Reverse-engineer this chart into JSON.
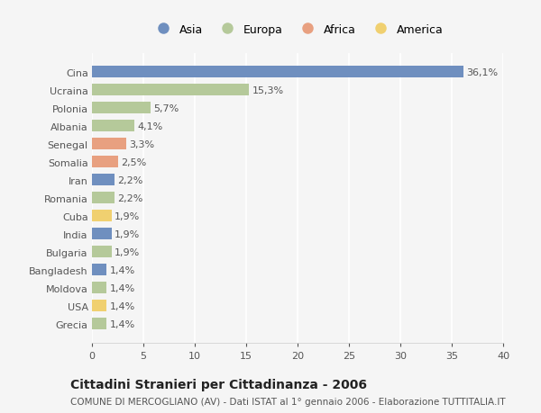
{
  "countries": [
    "Cina",
    "Ucraina",
    "Polonia",
    "Albania",
    "Senegal",
    "Somalia",
    "Iran",
    "Romania",
    "Cuba",
    "India",
    "Bulgaria",
    "Bangladesh",
    "Moldova",
    "USA",
    "Grecia"
  ],
  "values": [
    36.1,
    15.3,
    5.7,
    4.1,
    3.3,
    2.5,
    2.2,
    2.2,
    1.9,
    1.9,
    1.9,
    1.4,
    1.4,
    1.4,
    1.4
  ],
  "labels": [
    "36,1%",
    "15,3%",
    "5,7%",
    "4,1%",
    "3,3%",
    "2,5%",
    "2,2%",
    "2,2%",
    "1,9%",
    "1,9%",
    "1,9%",
    "1,4%",
    "1,4%",
    "1,4%",
    "1,4%"
  ],
  "continents": [
    "Asia",
    "Europa",
    "Europa",
    "Europa",
    "Africa",
    "Africa",
    "Asia",
    "Europa",
    "America",
    "Asia",
    "Europa",
    "Asia",
    "Europa",
    "America",
    "Europa"
  ],
  "continent_colors": {
    "Asia": "#6f8fbf",
    "Europa": "#b5c99a",
    "Africa": "#e8a080",
    "America": "#f0d070"
  },
  "legend_order": [
    "Asia",
    "Europa",
    "Africa",
    "America"
  ],
  "title": "Cittadini Stranieri per Cittadinanza - 2006",
  "subtitle": "COMUNE DI MERCOGLIANO (AV) - Dati ISTAT al 1° gennaio 2006 - Elaborazione TUTTITALIA.IT",
  "xlim": [
    0,
    40
  ],
  "xticks": [
    0,
    5,
    10,
    15,
    20,
    25,
    30,
    35,
    40
  ],
  "background_color": "#f5f5f5",
  "grid_color": "#ffffff",
  "bar_height": 0.65,
  "title_fontsize": 10,
  "subtitle_fontsize": 7.5,
  "label_fontsize": 8,
  "tick_fontsize": 8,
  "legend_fontsize": 9
}
